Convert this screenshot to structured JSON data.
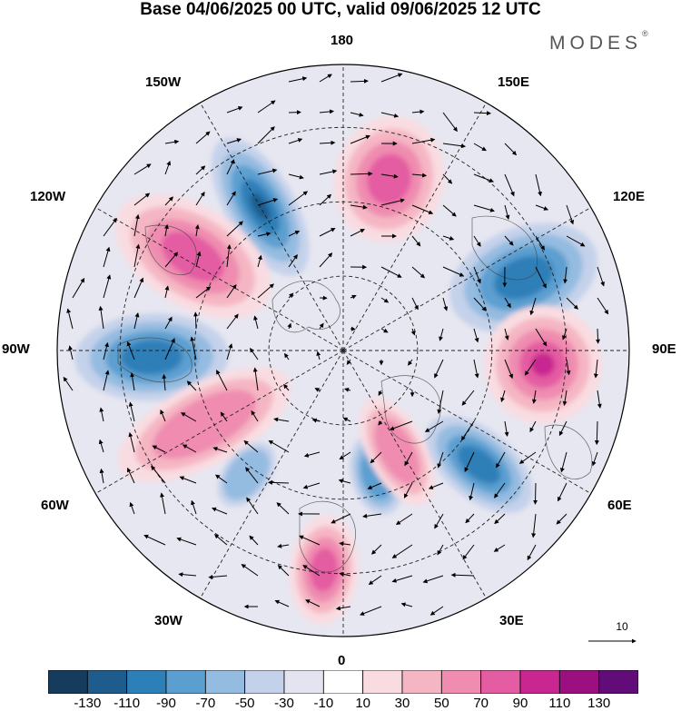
{
  "title": "Base 04/06/2025 00 UTC, valid 09/06/2025 12 UTC",
  "brand": "MODES",
  "brand_mark": "®",
  "meridian_labels": {
    "top": "180",
    "bottom": "0",
    "left": "90W",
    "right": "90E",
    "n150w": "150W",
    "n150e": "150E",
    "n120w": "120W",
    "n120e": "120E",
    "n60w": "60W",
    "n60e": "60E",
    "n30w": "30W",
    "n30e": "30E"
  },
  "vector_reference": "10",
  "colorbar": {
    "colors": [
      "#153c5c",
      "#1d5c8c",
      "#2d7fb8",
      "#5b9fd0",
      "#94bbe0",
      "#c4d1ea",
      "#e4e4f1",
      "#ffffff",
      "#f9dce1",
      "#f5b6c3",
      "#ef8cb0",
      "#e45ca2",
      "#c82690",
      "#9b0f80",
      "#620c79"
    ],
    "tick_labels": [
      "-130",
      "-110",
      "-90",
      "-70",
      "-50",
      "-30",
      "-10",
      "10",
      "30",
      "50",
      "70",
      "90",
      "110",
      "130"
    ]
  },
  "anomalies": [
    {
      "kind": "negative",
      "level": 4,
      "center": "150W-170W"
    },
    {
      "kind": "positive",
      "level": 3,
      "center": "160E"
    },
    {
      "kind": "positive",
      "level": 3,
      "center": "120W"
    },
    {
      "kind": "negative",
      "level": 3,
      "center": "110E"
    },
    {
      "kind": "negative",
      "level": 3,
      "center": "85W"
    },
    {
      "kind": "positive",
      "level": 4,
      "center": "85E"
    },
    {
      "kind": "positive",
      "level": 2,
      "center": "60W"
    },
    {
      "kind": "negative",
      "level": 3,
      "center": "50E"
    },
    {
      "kind": "negative",
      "level": 2,
      "center": "15E"
    },
    {
      "kind": "positive",
      "level": 2,
      "center": "30E"
    },
    {
      "kind": "positive",
      "level": 3,
      "center": "5W"
    },
    {
      "kind": "negative",
      "level": 1,
      "center": "30W"
    }
  ]
}
